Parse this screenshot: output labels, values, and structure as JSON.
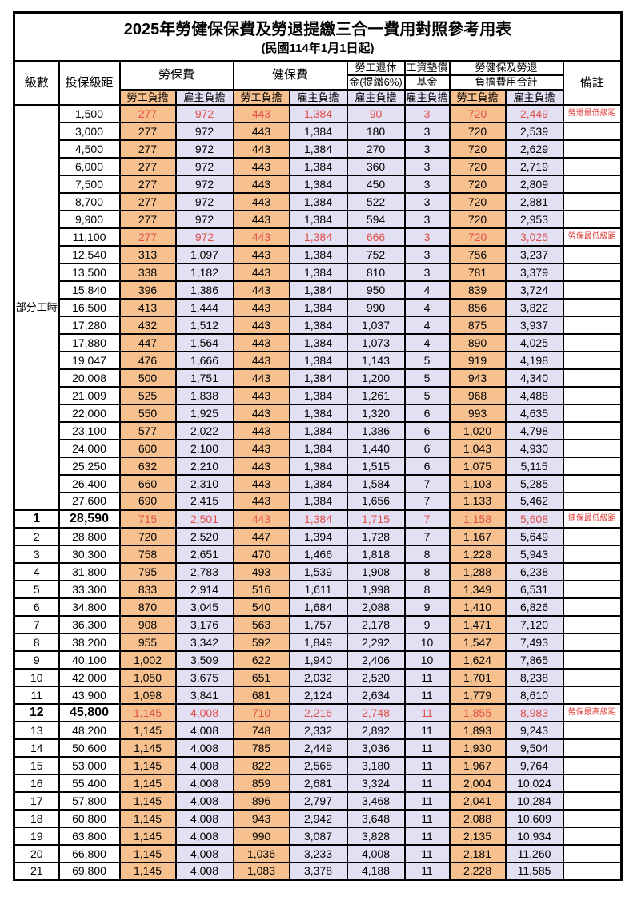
{
  "title": "2025年勞健保保費及勞退提繳三合一費用對照參考用表",
  "subtitle": "(民國114年1月1日起)",
  "colors": {
    "worker_bg": "#F7C18F",
    "employer_bg": "#E3E0F3",
    "highlight_red": "#E0504D",
    "note_red": "#E03A36"
  },
  "header": {
    "level": "級數",
    "bracket": "投保級距",
    "labor_insurance": "勞保費",
    "health_insurance": "健保費",
    "pension_line1": "勞工退休",
    "pension_line2": "金(提繳6%)",
    "wage_fund_line1": "工資墊償",
    "wage_fund_line2": "基金",
    "total_line1": "勞健保及勞退",
    "total_line2": "負擔費用合計",
    "remark": "備註",
    "worker_share": "勞工負擔",
    "employer_share": "雇主負擔"
  },
  "part_time_group": {
    "label": "部分工時",
    "rows": [
      {
        "bracket": "1,500",
        "cells": [
          "277",
          "972",
          "443",
          "1,384",
          "90",
          "3",
          "720",
          "2,449"
        ],
        "red": true,
        "note": "勞退最低級距"
      },
      {
        "bracket": "3,000",
        "cells": [
          "277",
          "972",
          "443",
          "1,384",
          "180",
          "3",
          "720",
          "2,539"
        ]
      },
      {
        "bracket": "4,500",
        "cells": [
          "277",
          "972",
          "443",
          "1,384",
          "270",
          "3",
          "720",
          "2,629"
        ]
      },
      {
        "bracket": "6,000",
        "cells": [
          "277",
          "972",
          "443",
          "1,384",
          "360",
          "3",
          "720",
          "2,719"
        ]
      },
      {
        "bracket": "7,500",
        "cells": [
          "277",
          "972",
          "443",
          "1,384",
          "450",
          "3",
          "720",
          "2,809"
        ]
      },
      {
        "bracket": "8,700",
        "cells": [
          "277",
          "972",
          "443",
          "1,384",
          "522",
          "3",
          "720",
          "2,881"
        ]
      },
      {
        "bracket": "9,900",
        "cells": [
          "277",
          "972",
          "443",
          "1,384",
          "594",
          "3",
          "720",
          "2,953"
        ]
      },
      {
        "bracket": "11,100",
        "cells": [
          "277",
          "972",
          "443",
          "1,384",
          "666",
          "3",
          "720",
          "3,025"
        ],
        "red": true,
        "note": "勞保最低級距"
      },
      {
        "bracket": "12,540",
        "cells": [
          "313",
          "1,097",
          "443",
          "1,384",
          "752",
          "3",
          "756",
          "3,237"
        ]
      },
      {
        "bracket": "13,500",
        "cells": [
          "338",
          "1,182",
          "443",
          "1,384",
          "810",
          "3",
          "781",
          "3,379"
        ]
      },
      {
        "bracket": "15,840",
        "cells": [
          "396",
          "1,386",
          "443",
          "1,384",
          "950",
          "4",
          "839",
          "3,724"
        ]
      },
      {
        "bracket": "16,500",
        "cells": [
          "413",
          "1,444",
          "443",
          "1,384",
          "990",
          "4",
          "856",
          "3,822"
        ]
      },
      {
        "bracket": "17,280",
        "cells": [
          "432",
          "1,512",
          "443",
          "1,384",
          "1,037",
          "4",
          "875",
          "3,937"
        ]
      },
      {
        "bracket": "17,880",
        "cells": [
          "447",
          "1,564",
          "443",
          "1,384",
          "1,073",
          "4",
          "890",
          "4,025"
        ]
      },
      {
        "bracket": "19,047",
        "cells": [
          "476",
          "1,666",
          "443",
          "1,384",
          "1,143",
          "5",
          "919",
          "4,198"
        ]
      },
      {
        "bracket": "20,008",
        "cells": [
          "500",
          "1,751",
          "443",
          "1,384",
          "1,200",
          "5",
          "943",
          "4,340"
        ]
      },
      {
        "bracket": "21,009",
        "cells": [
          "525",
          "1,838",
          "443",
          "1,384",
          "1,261",
          "5",
          "968",
          "4,488"
        ]
      },
      {
        "bracket": "22,000",
        "cells": [
          "550",
          "1,925",
          "443",
          "1,384",
          "1,320",
          "6",
          "993",
          "4,635"
        ]
      },
      {
        "bracket": "23,100",
        "cells": [
          "577",
          "2,022",
          "443",
          "1,384",
          "1,386",
          "6",
          "1,020",
          "4,798"
        ]
      },
      {
        "bracket": "24,000",
        "cells": [
          "600",
          "2,100",
          "443",
          "1,384",
          "1,440",
          "6",
          "1,043",
          "4,930"
        ]
      },
      {
        "bracket": "25,250",
        "cells": [
          "632",
          "2,210",
          "443",
          "1,384",
          "1,515",
          "6",
          "1,075",
          "5,115"
        ]
      },
      {
        "bracket": "26,400",
        "cells": [
          "660",
          "2,310",
          "443",
          "1,384",
          "1,584",
          "7",
          "1,103",
          "5,285"
        ]
      },
      {
        "bracket": "27,600",
        "cells": [
          "690",
          "2,415",
          "443",
          "1,384",
          "1,656",
          "7",
          "1,133",
          "5,462"
        ]
      }
    ]
  },
  "levels": [
    {
      "level": "1",
      "bracket": "28,590",
      "cells": [
        "715",
        "2,501",
        "443",
        "1,384",
        "1,715",
        "7",
        "1,158",
        "5,608"
      ],
      "red": true,
      "bold": true,
      "thick_top": true,
      "note": "健保最低級距"
    },
    {
      "level": "2",
      "bracket": "28,800",
      "cells": [
        "720",
        "2,520",
        "447",
        "1,394",
        "1,728",
        "7",
        "1,167",
        "5,649"
      ]
    },
    {
      "level": "3",
      "bracket": "30,300",
      "cells": [
        "758",
        "2,651",
        "470",
        "1,466",
        "1,818",
        "8",
        "1,228",
        "5,943"
      ]
    },
    {
      "level": "4",
      "bracket": "31,800",
      "cells": [
        "795",
        "2,783",
        "493",
        "1,539",
        "1,908",
        "8",
        "1,288",
        "6,238"
      ]
    },
    {
      "level": "5",
      "bracket": "33,300",
      "cells": [
        "833",
        "2,914",
        "516",
        "1,611",
        "1,998",
        "8",
        "1,349",
        "6,531"
      ]
    },
    {
      "level": "6",
      "bracket": "34,800",
      "cells": [
        "870",
        "3,045",
        "540",
        "1,684",
        "2,088",
        "9",
        "1,410",
        "6,826"
      ]
    },
    {
      "level": "7",
      "bracket": "36,300",
      "cells": [
        "908",
        "3,176",
        "563",
        "1,757",
        "2,178",
        "9",
        "1,471",
        "7,120"
      ]
    },
    {
      "level": "8",
      "bracket": "38,200",
      "cells": [
        "955",
        "3,342",
        "592",
        "1,849",
        "2,292",
        "10",
        "1,547",
        "7,493"
      ]
    },
    {
      "level": "9",
      "bracket": "40,100",
      "cells": [
        "1,002",
        "3,509",
        "622",
        "1,940",
        "2,406",
        "10",
        "1,624",
        "7,865"
      ]
    },
    {
      "level": "10",
      "bracket": "42,000",
      "cells": [
        "1,050",
        "3,675",
        "651",
        "2,032",
        "2,520",
        "11",
        "1,701",
        "8,238"
      ]
    },
    {
      "level": "11",
      "bracket": "43,900",
      "cells": [
        "1,098",
        "3,841",
        "681",
        "2,124",
        "2,634",
        "11",
        "1,779",
        "8,610"
      ]
    },
    {
      "level": "12",
      "bracket": "45,800",
      "cells": [
        "1,145",
        "4,008",
        "710",
        "2,216",
        "2,748",
        "11",
        "1,855",
        "8,983"
      ],
      "red": true,
      "bold": true,
      "note": "勞保最高級距"
    },
    {
      "level": "13",
      "bracket": "48,200",
      "cells": [
        "1,145",
        "4,008",
        "748",
        "2,332",
        "2,892",
        "11",
        "1,893",
        "9,243"
      ]
    },
    {
      "level": "14",
      "bracket": "50,600",
      "cells": [
        "1,145",
        "4,008",
        "785",
        "2,449",
        "3,036",
        "11",
        "1,930",
        "9,504"
      ]
    },
    {
      "level": "15",
      "bracket": "53,000",
      "cells": [
        "1,145",
        "4,008",
        "822",
        "2,565",
        "3,180",
        "11",
        "1,967",
        "9,764"
      ]
    },
    {
      "level": "16",
      "bracket": "55,400",
      "cells": [
        "1,145",
        "4,008",
        "859",
        "2,681",
        "3,324",
        "11",
        "2,004",
        "10,024"
      ]
    },
    {
      "level": "17",
      "bracket": "57,800",
      "cells": [
        "1,145",
        "4,008",
        "896",
        "2,797",
        "3,468",
        "11",
        "2,041",
        "10,284"
      ]
    },
    {
      "level": "18",
      "bracket": "60,800",
      "cells": [
        "1,145",
        "4,008",
        "943",
        "2,942",
        "3,648",
        "11",
        "2,088",
        "10,609"
      ]
    },
    {
      "level": "19",
      "bracket": "63,800",
      "cells": [
        "1,145",
        "4,008",
        "990",
        "3,087",
        "3,828",
        "11",
        "2,135",
        "10,934"
      ]
    },
    {
      "level": "20",
      "bracket": "66,800",
      "cells": [
        "1,145",
        "4,008",
        "1,036",
        "3,233",
        "4,008",
        "11",
        "2,181",
        "11,260"
      ]
    },
    {
      "level": "21",
      "bracket": "69,800",
      "cells": [
        "1,145",
        "4,008",
        "1,083",
        "3,378",
        "4,188",
        "11",
        "2,228",
        "11,585"
      ]
    }
  ]
}
